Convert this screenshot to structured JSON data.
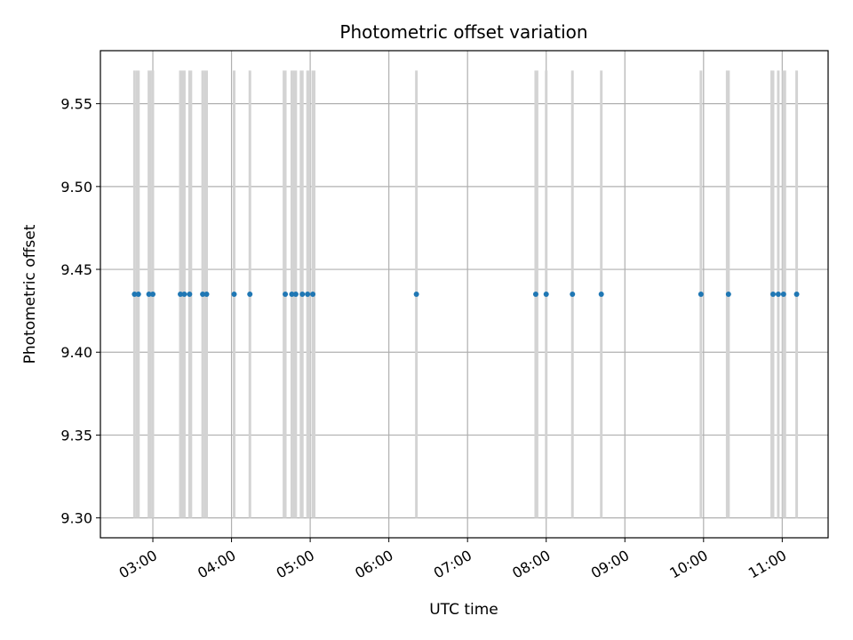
{
  "chart_data": {
    "type": "scatter",
    "title": "Photometric offset variation",
    "xlabel": "UTC time",
    "ylabel": "Photometric offset",
    "xlim": [
      "02:20",
      "11:35"
    ],
    "ylim": [
      9.288,
      9.582
    ],
    "x_ticks": [
      "03:00",
      "04:00",
      "05:00",
      "06:00",
      "07:00",
      "08:00",
      "09:00",
      "10:00",
      "11:00"
    ],
    "y_ticks": [
      "9.30",
      "9.35",
      "9.40",
      "9.45",
      "9.50",
      "9.55"
    ],
    "grid": true,
    "marker_color": "#1f77b4",
    "band_color": "#d3d3d3",
    "band_range": [
      9.3,
      9.57
    ],
    "exposure_bands": [
      [
        "02:45",
        "02:47"
      ],
      [
        "02:47",
        "02:50"
      ],
      [
        "02:56",
        "02:59"
      ],
      [
        "02:59",
        "03:01"
      ],
      [
        "03:20",
        "03:22"
      ],
      [
        "03:22",
        "03:25"
      ],
      [
        "03:27",
        "03:30"
      ],
      [
        "03:37",
        "03:39"
      ],
      [
        "03:39",
        "03:42"
      ],
      [
        "04:01",
        "04:03"
      ],
      [
        "04:13",
        "04:15"
      ],
      [
        "04:39",
        "04:42"
      ],
      [
        "04:45",
        "04:47"
      ],
      [
        "04:47",
        "04:50"
      ],
      [
        "04:52",
        "04:55"
      ],
      [
        "04:57",
        "05:00"
      ],
      [
        "05:01",
        "05:04"
      ],
      [
        "06:20",
        "06:22"
      ],
      [
        "07:51",
        "07:54"
      ],
      [
        "07:59",
        "08:01"
      ],
      [
        "08:19",
        "08:21"
      ],
      [
        "08:41",
        "08:43"
      ],
      [
        "09:57",
        "09:59"
      ],
      [
        "10:17",
        "10:20"
      ],
      [
        "10:51",
        "10:54"
      ],
      [
        "10:56",
        "10:58"
      ],
      [
        "11:00",
        "11:03"
      ],
      [
        "11:10",
        "11:12"
      ]
    ],
    "points": [
      {
        "x": "02:46",
        "y": 9.435
      },
      {
        "x": "02:49",
        "y": 9.435
      },
      {
        "x": "02:57",
        "y": 9.435
      },
      {
        "x": "03:00",
        "y": 9.435
      },
      {
        "x": "03:21",
        "y": 9.435
      },
      {
        "x": "03:24",
        "y": 9.435
      },
      {
        "x": "03:28",
        "y": 9.435
      },
      {
        "x": "03:38",
        "y": 9.435
      },
      {
        "x": "03:41",
        "y": 9.435
      },
      {
        "x": "04:02",
        "y": 9.435
      },
      {
        "x": "04:14",
        "y": 9.435
      },
      {
        "x": "04:41",
        "y": 9.435
      },
      {
        "x": "04:46",
        "y": 9.435
      },
      {
        "x": "04:49",
        "y": 9.435
      },
      {
        "x": "04:54",
        "y": 9.435
      },
      {
        "x": "04:58",
        "y": 9.435
      },
      {
        "x": "05:02",
        "y": 9.435
      },
      {
        "x": "06:21",
        "y": 9.435
      },
      {
        "x": "07:52",
        "y": 9.435
      },
      {
        "x": "08:00",
        "y": 9.435
      },
      {
        "x": "08:20",
        "y": 9.435
      },
      {
        "x": "08:42",
        "y": 9.435
      },
      {
        "x": "09:58",
        "y": 9.435
      },
      {
        "x": "10:19",
        "y": 9.435
      },
      {
        "x": "10:53",
        "y": 9.435
      },
      {
        "x": "10:57",
        "y": 9.435
      },
      {
        "x": "11:01",
        "y": 9.435
      },
      {
        "x": "11:11",
        "y": 9.435
      }
    ]
  }
}
